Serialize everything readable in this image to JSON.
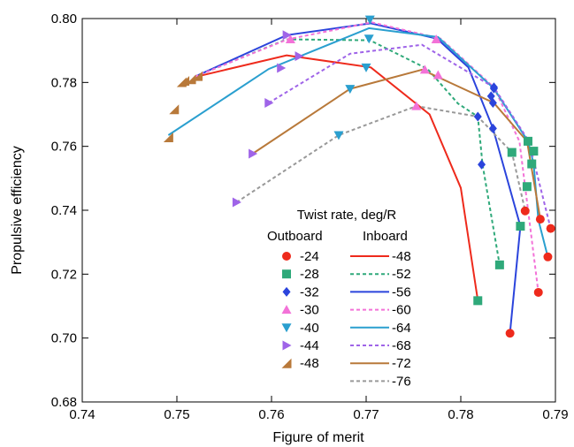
{
  "chart_data": {
    "type": "line",
    "xlabel": "Figure of merit",
    "ylabel": "Propulsive efficiency",
    "xlim": [
      0.74,
      0.79
    ],
    "ylim": [
      0.68,
      0.8
    ],
    "xticks": [
      "0.74",
      "0.75",
      "0.76",
      "0.77",
      "0.78",
      "0.79"
    ],
    "yticks": [
      "0.68",
      "0.70",
      "0.72",
      "0.74",
      "0.76",
      "0.78",
      "0.80"
    ],
    "grid": false,
    "legend": {
      "title": "Twist rate, deg/R",
      "col1_header": "Outboard",
      "col2_header": "Inboard",
      "placement": "lower-right"
    },
    "outboard_series": [
      {
        "name": "-24",
        "marker": "circle",
        "color": "#ee2a1c",
        "points": [
          [
            0.7852,
            0.7015
          ],
          [
            0.7868,
            0.7398
          ],
          [
            0.7882,
            0.7143
          ],
          [
            0.7884,
            0.7372
          ],
          [
            0.7892,
            0.7254
          ],
          [
            0.7895,
            0.7343
          ]
        ]
      },
      {
        "name": "-28",
        "marker": "square",
        "color": "#2fa97a",
        "points": [
          [
            0.7818,
            0.7117
          ],
          [
            0.7841,
            0.7229
          ],
          [
            0.7854,
            0.7581
          ],
          [
            0.7863,
            0.735
          ],
          [
            0.787,
            0.7474
          ],
          [
            0.7871,
            0.7616
          ],
          [
            0.7875,
            0.7545
          ],
          [
            0.7877,
            0.7585
          ]
        ]
      },
      {
        "name": "-32",
        "marker": "diamond",
        "color": "#2b44dc",
        "points": [
          [
            0.7818,
            0.7693
          ],
          [
            0.7822,
            0.7543
          ],
          [
            0.7832,
            0.7757
          ],
          [
            0.7834,
            0.7736
          ],
          [
            0.7835,
            0.7781
          ],
          [
            0.7835,
            0.7785
          ],
          [
            0.7834,
            0.7656
          ]
        ]
      },
      {
        "name": "-30",
        "marker": "triangle-up",
        "color": "#f372d8",
        "points": [
          [
            0.762,
            0.7935
          ],
          [
            0.7753,
            0.7726
          ],
          [
            0.7762,
            0.784
          ],
          [
            0.7774,
            0.7935
          ],
          [
            0.7776,
            0.7823
          ]
        ]
      },
      {
        "name": "-40",
        "marker": "triangle-down",
        "color": "#2a9fcf",
        "points": [
          [
            0.7671,
            0.7635
          ],
          [
            0.7683,
            0.778
          ],
          [
            0.77,
            0.7847
          ],
          [
            0.7703,
            0.7937
          ],
          [
            0.7704,
            0.7997
          ]
        ]
      },
      {
        "name": "-44",
        "marker": "triangle-right",
        "color": "#9f64e8",
        "points": [
          [
            0.7563,
            0.7425
          ],
          [
            0.758,
            0.7577
          ],
          [
            0.7597,
            0.7736
          ],
          [
            0.761,
            0.7845
          ],
          [
            0.7616,
            0.7948
          ],
          [
            0.7629,
            0.7882
          ]
        ]
      },
      {
        "name": "-48",
        "marker": "triangle-corner",
        "color": "#b8793a",
        "points": [
          [
            0.7491,
            0.7628
          ],
          [
            0.7497,
            0.7716
          ],
          [
            0.7505,
            0.7801
          ],
          [
            0.7508,
            0.7805
          ],
          [
            0.7515,
            0.781
          ],
          [
            0.7522,
            0.782
          ]
        ]
      }
    ],
    "inboard_series": [
      {
        "name": "-48",
        "style": "solid",
        "color": "#ee2a1c",
        "points": [
          [
            0.7519,
            0.7817
          ],
          [
            0.7616,
            0.7885
          ],
          [
            0.7705,
            0.7847
          ],
          [
            0.7767,
            0.77
          ],
          [
            0.78,
            0.747
          ],
          [
            0.7818,
            0.7117
          ]
        ]
      },
      {
        "name": "-52",
        "style": "dashed",
        "color": "#2fa97a",
        "points": [
          [
            0.7519,
            0.7818
          ],
          [
            0.7616,
            0.7935
          ],
          [
            0.7704,
            0.7932
          ],
          [
            0.7765,
            0.7842
          ],
          [
            0.7797,
            0.7734
          ],
          [
            0.7818,
            0.7693
          ],
          [
            0.7823,
            0.7543
          ],
          [
            0.7841,
            0.7229
          ]
        ]
      },
      {
        "name": "-56",
        "style": "solid",
        "color": "#2b44dc",
        "points": [
          [
            0.7519,
            0.7818
          ],
          [
            0.7616,
            0.7948
          ],
          [
            0.7705,
            0.7985
          ],
          [
            0.7775,
            0.7937
          ],
          [
            0.7808,
            0.7847
          ],
          [
            0.7834,
            0.7656
          ],
          [
            0.7863,
            0.735
          ],
          [
            0.7852,
            0.7015
          ]
        ]
      },
      {
        "name": "-60",
        "style": "dashed",
        "color": "#f372d8",
        "points": [
          [
            0.7519,
            0.7818
          ],
          [
            0.7617,
            0.7935
          ],
          [
            0.7706,
            0.7988
          ],
          [
            0.7779,
            0.7937
          ],
          [
            0.7835,
            0.7785
          ],
          [
            0.7862,
            0.7616
          ],
          [
            0.7882,
            0.7143
          ]
        ]
      },
      {
        "name": "-64",
        "style": "solid",
        "color": "#2a9fcf",
        "points": [
          [
            0.7491,
            0.7635
          ],
          [
            0.7597,
            0.7842
          ],
          [
            0.7703,
            0.797
          ],
          [
            0.7776,
            0.7942
          ],
          [
            0.7835,
            0.7781
          ],
          [
            0.7871,
            0.7616
          ],
          [
            0.7877,
            0.7545
          ],
          [
            0.7882,
            0.737
          ],
          [
            0.7892,
            0.7254
          ]
        ]
      },
      {
        "name": "-68",
        "style": "dashed",
        "color": "#9f64e8",
        "points": [
          [
            0.7597,
            0.7736
          ],
          [
            0.7683,
            0.789
          ],
          [
            0.7759,
            0.7918
          ],
          [
            0.7835,
            0.7785
          ],
          [
            0.7872,
            0.7616
          ],
          [
            0.7895,
            0.7343
          ]
        ]
      },
      {
        "name": "-72",
        "style": "solid",
        "color": "#b8793a",
        "points": [
          [
            0.758,
            0.7577
          ],
          [
            0.7683,
            0.778
          ],
          [
            0.7759,
            0.784
          ],
          [
            0.7835,
            0.7736
          ],
          [
            0.787,
            0.7616
          ],
          [
            0.7884,
            0.7372
          ]
        ]
      },
      {
        "name": "-76",
        "style": "dashed",
        "color": "#999999",
        "points": [
          [
            0.7563,
            0.7425
          ],
          [
            0.7671,
            0.7635
          ],
          [
            0.7753,
            0.7726
          ],
          [
            0.7818,
            0.7693
          ],
          [
            0.7854,
            0.7581
          ],
          [
            0.7868,
            0.7398
          ]
        ]
      }
    ]
  }
}
